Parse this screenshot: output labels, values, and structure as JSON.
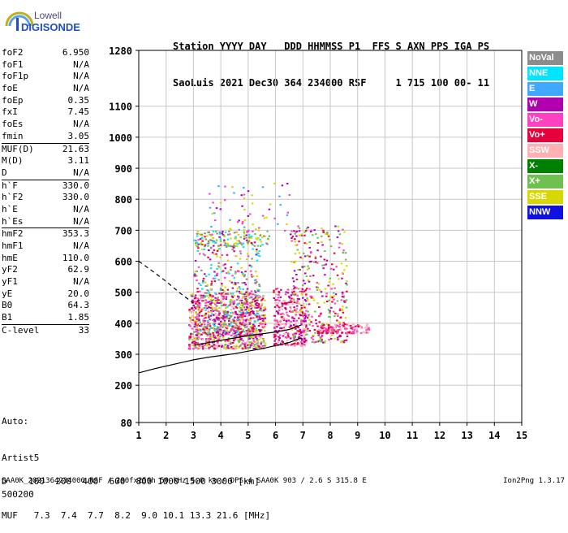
{
  "logo": {
    "line1": "Lowell",
    "line2": "DIGISONDE"
  },
  "header": {
    "line1": "Station YYYY DAY   DDD HHMMSS P1  FFS S AXN PPS IGA PS",
    "line2": "SaoLuis 2021 Dec30 364 234000 RSF     1 715 100 00- 11"
  },
  "params": [
    {
      "name": "foF2",
      "value": "6.950"
    },
    {
      "name": "foF1",
      "value": "N/A"
    },
    {
      "name": "foF1p",
      "value": "N/A"
    },
    {
      "name": "foE",
      "value": "N/A"
    },
    {
      "name": "foEp",
      "value": "0.35"
    },
    {
      "name": "fxI",
      "value": "7.45"
    },
    {
      "name": "foEs",
      "value": "N/A"
    },
    {
      "name": "fmin",
      "value": "3.05"
    },
    {
      "name": "MUF(D)",
      "value": "21.63",
      "sep": true
    },
    {
      "name": "M(D)",
      "value": "3.11"
    },
    {
      "name": "D",
      "value": "N/A"
    },
    {
      "name": "h`F",
      "value": "330.0",
      "sep": true
    },
    {
      "name": "h`F2",
      "value": "330.0"
    },
    {
      "name": "h`E",
      "value": "N/A"
    },
    {
      "name": "h`Es",
      "value": "N/A"
    },
    {
      "name": "hmF2",
      "value": "353.3",
      "sep": true
    },
    {
      "name": "hmF1",
      "value": "N/A"
    },
    {
      "name": "hmE",
      "value": "110.0"
    },
    {
      "name": "yF2",
      "value": "62.9"
    },
    {
      "name": "yF1",
      "value": "N/A"
    },
    {
      "name": "yE",
      "value": "20.0"
    },
    {
      "name": "B0",
      "value": "64.3"
    },
    {
      "name": "B1",
      "value": "1.85"
    },
    {
      "name": "C-level",
      "value": "33",
      "sep": true
    }
  ],
  "auto": {
    "line1": "Auto:",
    "line2": "Artist5",
    "line3": "500200"
  },
  "legend": [
    {
      "label": "NoVal",
      "color": "#8c8c8c"
    },
    {
      "label": "NNE",
      "color": "#00e5ff"
    },
    {
      "label": "E",
      "color": "#40a8ff"
    },
    {
      "label": "W",
      "color": "#b000b0"
    },
    {
      "label": "Vo-",
      "color": "#ff40c0"
    },
    {
      "label": "Vo+",
      "color": "#e8003c"
    },
    {
      "label": "SSW",
      "color": "#ffb0b0"
    },
    {
      "label": "X-",
      "color": "#008000"
    },
    {
      "label": "X+",
      "color": "#70c050"
    },
    {
      "label": "SSE",
      "color": "#d8d800"
    },
    {
      "label": "NNW",
      "color": "#1010e0"
    }
  ],
  "muf": {
    "line1": "D    100  200  400  600  800 1000 1500 3000 [km]",
    "line2": "MUF   7.3  7.4  7.7  8.2  9.0 10.1 13.3 21.6 [MHz]"
  },
  "footer": "SAA0K_2021364234000.RSF / 280fx256h 50 kHz 5.0 km / DPS-4 SAA0K 903 / 2.6 S 315.8 E",
  "version": "Ion2Png 1.3.17",
  "chart_data": {
    "type": "scatter",
    "title": "",
    "xlabel": "",
    "ylabel": "",
    "xlim": [
      1,
      15
    ],
    "ylim": [
      80,
      1280
    ],
    "x_ticks": [
      1,
      2,
      3,
      4,
      5,
      6,
      7,
      8,
      9,
      10,
      11,
      12,
      13,
      14,
      15
    ],
    "y_ticks": [
      80,
      200,
      300,
      400,
      500,
      600,
      700,
      800,
      900,
      1000,
      1100,
      1280
    ],
    "grid": true,
    "clusters": [
      {
        "x": [
          2.8,
          5.6
        ],
        "y": [
          320,
          500
        ],
        "n": 900,
        "colors": [
          "#b000b0",
          "#ff40c0",
          "#e8003c",
          "#70c050",
          "#d8d800",
          "#ffb0b0"
        ]
      },
      {
        "x": [
          3.0,
          5.4
        ],
        "y": [
          360,
          700
        ],
        "n": 500,
        "colors": [
          "#b000b0",
          "#ff40c0",
          "#e8003c",
          "#d8d800",
          "#00e5ff",
          "#8c8c8c"
        ]
      },
      {
        "x": [
          3.0,
          5.8
        ],
        "y": [
          650,
          700
        ],
        "n": 100,
        "colors": [
          "#d8d800",
          "#70c050",
          "#8c8c8c",
          "#00e5ff"
        ]
      },
      {
        "x": [
          5.9,
          7.1
        ],
        "y": [
          330,
          520
        ],
        "n": 300,
        "colors": [
          "#b000b0",
          "#ff40c0",
          "#e8003c",
          "#ffb0b0"
        ]
      },
      {
        "x": [
          6.5,
          8.6
        ],
        "y": [
          340,
          720
        ],
        "n": 350,
        "colors": [
          "#b000b0",
          "#e8003c",
          "#ff40c0",
          "#d8d800",
          "#70c050"
        ]
      },
      {
        "x": [
          7.5,
          9.4
        ],
        "y": [
          370,
          400
        ],
        "n": 150,
        "colors": [
          "#ff40c0",
          "#e8003c",
          "#ffb0b0"
        ]
      },
      {
        "x": [
          3.5,
          6.5
        ],
        "y": [
          700,
          860
        ],
        "n": 60,
        "colors": [
          "#b000b0",
          "#ff40c0",
          "#40a8ff",
          "#d8d800"
        ]
      }
    ],
    "solid_curve": {
      "x": [
        1.0,
        1.5,
        2.0,
        2.5,
        3.0,
        3.5,
        4.0,
        4.5,
        5.0,
        5.5,
        6.0,
        6.5,
        6.95
      ],
      "y": [
        240,
        252,
        262,
        272,
        282,
        290,
        296,
        302,
        310,
        318,
        328,
        338,
        353
      ]
    },
    "dashed_curve": {
      "x": [
        1.0,
        1.5,
        2.0,
        2.5,
        3.0
      ],
      "y": [
        600,
        568,
        535,
        498,
        465
      ]
    },
    "profile_curve": {
      "x": [
        3.05,
        4.0,
        5.0,
        6.0,
        6.5,
        6.95
      ],
      "y": [
        330,
        345,
        360,
        372,
        380,
        395
      ]
    }
  }
}
